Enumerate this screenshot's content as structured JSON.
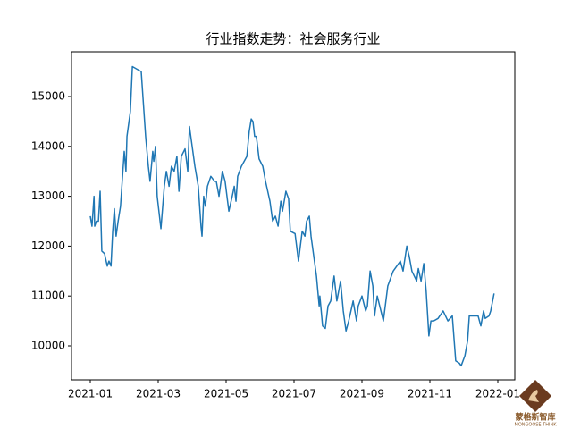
{
  "chart_data": {
    "type": "line",
    "title": "行业指数走势：社会服务行业",
    "x": [
      0,
      0.05,
      0.11,
      0.13,
      0.18,
      0.24,
      0.29,
      0.34,
      0.42,
      0.5,
      0.55,
      0.61,
      0.66,
      0.71,
      0.76,
      0.82,
      0.89,
      1.0,
      1.05,
      1.08,
      1.18,
      1.24,
      1.5,
      1.55,
      1.63,
      1.71,
      1.76,
      1.84,
      1.87,
      1.92,
      1.97,
      2.08,
      2.18,
      2.24,
      2.32,
      2.39,
      2.47,
      2.55,
      2.61,
      2.68,
      2.79,
      2.87,
      2.92,
      3.0,
      3.08,
      3.18,
      3.26,
      3.29,
      3.34,
      3.39,
      3.45,
      3.55,
      3.66,
      3.71,
      3.79,
      3.89,
      3.97,
      4.08,
      4.18,
      4.24,
      4.29,
      4.34,
      4.45,
      4.61,
      4.68,
      4.74,
      4.79,
      4.84,
      4.89,
      4.97,
      5.08,
      5.16,
      5.29,
      5.37,
      5.45,
      5.53,
      5.61,
      5.66,
      5.76,
      5.84,
      5.89,
      6.03,
      6.13,
      6.24,
      6.32,
      6.37,
      6.45,
      6.5,
      6.58,
      6.66,
      6.74,
      6.76,
      6.84,
      6.92,
      7.0,
      7.08,
      7.18,
      7.26,
      7.37,
      7.45,
      7.53,
      7.61,
      7.74,
      7.84,
      7.89,
      8.0,
      8.11,
      8.16,
      8.24,
      8.32,
      8.37,
      8.45,
      8.63,
      8.76,
      8.92,
      9.13,
      9.21,
      9.32,
      9.39,
      9.47,
      9.61,
      9.66,
      9.74,
      9.82,
      9.89,
      9.97,
      10.03,
      10.11,
      10.24,
      10.39,
      10.53,
      10.66,
      10.76,
      10.87,
      10.92,
      11.03,
      11.11,
      11.16,
      11.29,
      11.42,
      11.5,
      11.58,
      11.63,
      11.74,
      11.79,
      11.89
    ],
    "series": [
      {
        "color": "#1f77b4",
        "values": [
          12600,
          12400,
          13000,
          12400,
          12500,
          12500,
          13100,
          11900,
          11850,
          11600,
          11700,
          11600,
          12300,
          12750,
          12200,
          12500,
          12800,
          13900,
          13500,
          14200,
          14700,
          15600,
          15500,
          15000,
          14200,
          13600,
          13300,
          13900,
          13700,
          14000,
          13000,
          12350,
          13200,
          13500,
          13200,
          13600,
          13500,
          13800,
          13100,
          13800,
          13950,
          13500,
          14400,
          14000,
          13600,
          13200,
          12400,
          12200,
          13000,
          12800,
          13200,
          13400,
          13300,
          13300,
          13000,
          13500,
          13300,
          12700,
          13000,
          13200,
          12900,
          13400,
          13600,
          13800,
          14300,
          14550,
          14500,
          14200,
          14200,
          13750,
          13600,
          13300,
          12900,
          12500,
          12600,
          12400,
          12900,
          12700,
          13100,
          12950,
          12300,
          12250,
          11700,
          12300,
          12200,
          12500,
          12600,
          12200,
          11800,
          11400,
          10800,
          11000,
          10400,
          10350,
          10800,
          10900,
          11400,
          10900,
          11300,
          10700,
          10300,
          10500,
          10900,
          10500,
          10800,
          11000,
          10700,
          10800,
          11500,
          11200,
          10600,
          11000,
          10500,
          11200,
          11500,
          11700,
          11500,
          12000,
          11800,
          11500,
          11300,
          11550,
          11300,
          11650,
          11100,
          10200,
          10500,
          10500,
          10550,
          10700,
          10500,
          10600,
          9700,
          9650,
          9600,
          9800,
          10100,
          10600,
          10600,
          10600,
          10400,
          10700,
          10550,
          10600,
          10700,
          11050
        ]
      }
    ],
    "xlim": [
      -0.553,
      12.5
    ],
    "xticks": [
      {
        "value": 0,
        "label": "2021-01"
      },
      {
        "value": 2,
        "label": "2021-03"
      },
      {
        "value": 4,
        "label": "2021-05"
      },
      {
        "value": 6,
        "label": "2021-07"
      },
      {
        "value": 8,
        "label": "2021-09"
      },
      {
        "value": 10,
        "label": "2021-11"
      },
      {
        "value": 12,
        "label": "2022-01"
      }
    ],
    "ylim": [
      9319,
      15896
    ],
    "yticks": [
      10000,
      11000,
      12000,
      13000,
      14000,
      15000
    ],
    "grid": false
  },
  "logo": {
    "name": "蒙格斯智库",
    "subtitle": "MONGOOSE THINK"
  }
}
